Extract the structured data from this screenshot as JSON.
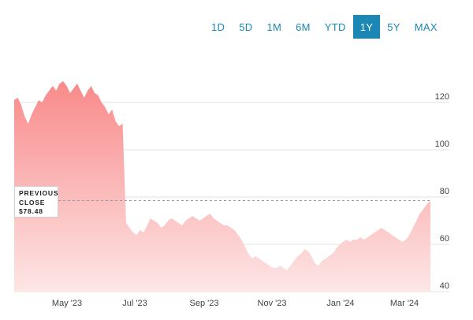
{
  "range_selector": {
    "options": [
      "1D",
      "5D",
      "1M",
      "6M",
      "YTD",
      "1Y",
      "5Y",
      "MAX"
    ],
    "selected": "1Y"
  },
  "previous_close": {
    "label_line1": "PREVIOUS",
    "label_line2": "CLOSE",
    "value_text": "$78.48"
  },
  "colors": {
    "accent": "#1a87b5",
    "area_top": "#f98a8a",
    "area_bottom": "#fde6e6",
    "grid": "#e3e3e3"
  },
  "chart_data": {
    "type": "area",
    "title": "",
    "xlabel": "",
    "ylabel": "",
    "ylim": [
      40,
      132
    ],
    "y_ticks": [
      40,
      60,
      80,
      100,
      120
    ],
    "x_ticks": [
      "May '23",
      "Jul '23",
      "Sep '23",
      "Nov '23",
      "Jan '24",
      "Mar '24"
    ],
    "grid": "horizontal",
    "previous_close": 78.48,
    "series": [
      {
        "values": [
          121,
          122,
          119,
          114,
          111,
          115,
          118,
          121,
          120,
          123,
          125,
          127,
          125,
          128,
          129,
          127,
          124,
          126,
          128,
          125,
          122,
          125,
          127,
          124,
          123,
          120,
          118,
          115,
          117,
          112,
          110,
          111,
          69,
          67,
          65,
          64,
          66,
          65,
          68,
          71,
          70,
          69,
          67,
          68,
          70,
          71,
          70,
          69,
          68,
          70,
          71,
          72,
          71,
          70,
          71,
          72,
          73,
          71,
          70,
          69,
          68,
          68,
          67,
          66,
          64,
          62,
          59,
          56,
          54,
          55,
          54,
          53,
          52,
          51,
          50,
          50,
          51,
          50,
          49,
          51,
          53,
          55,
          56,
          58,
          57,
          55,
          52,
          51,
          53,
          54,
          55,
          56,
          58,
          60,
          61,
          62,
          61,
          62,
          62,
          63,
          62,
          63,
          64,
          65,
          66,
          67,
          66,
          65,
          64,
          63,
          62,
          61,
          62,
          64,
          67,
          70,
          73,
          75,
          77,
          78.5
        ]
      }
    ]
  }
}
